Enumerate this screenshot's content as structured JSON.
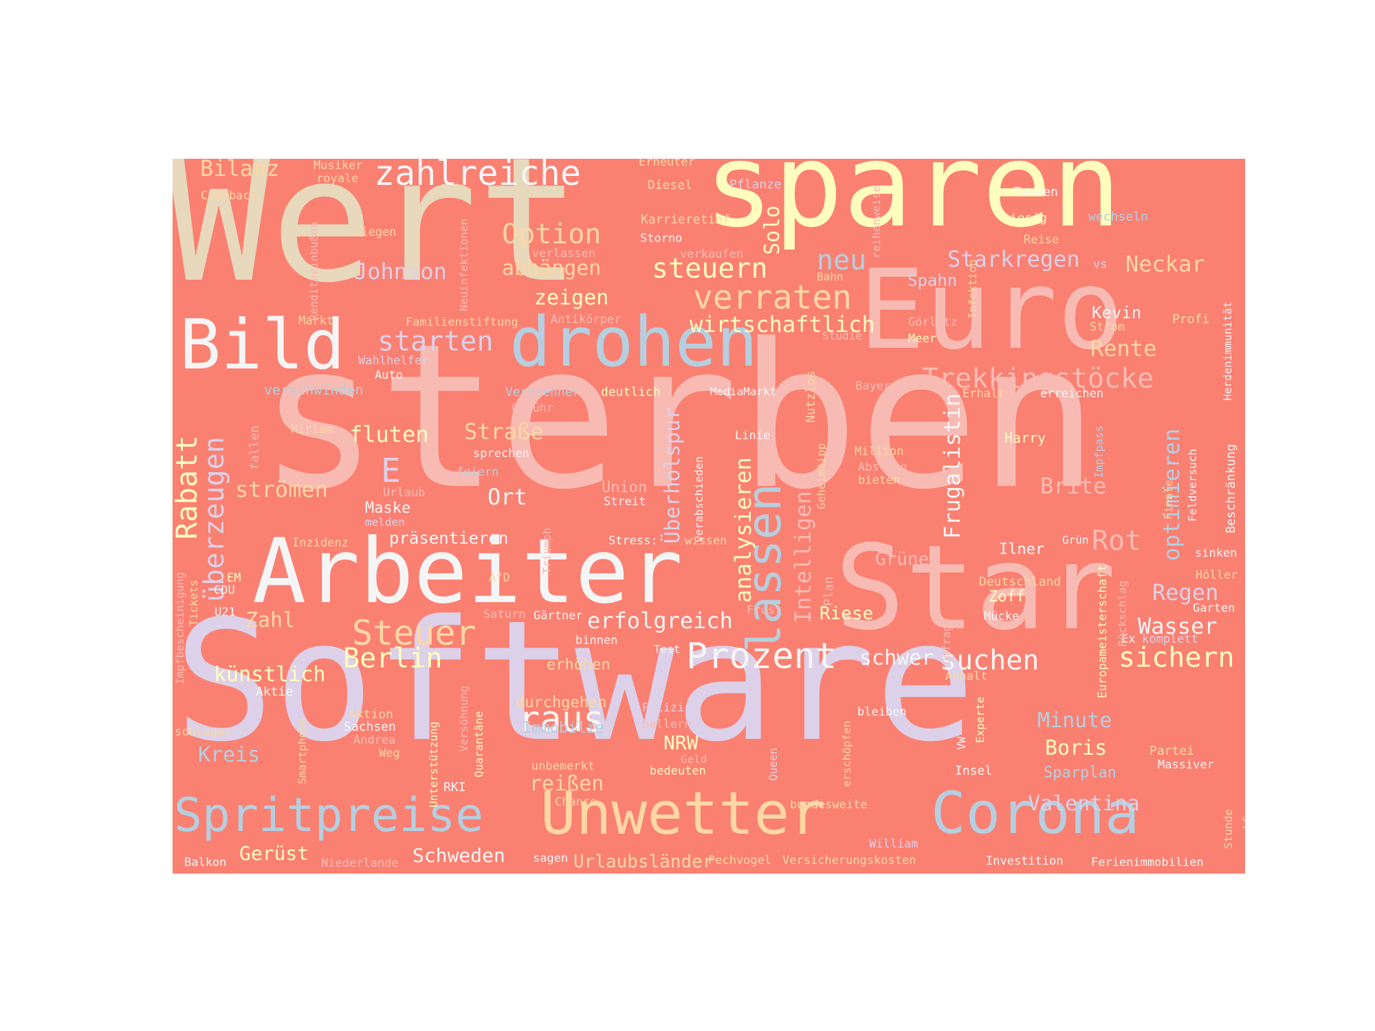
{
  "background_color": "#fa8072",
  "palette": {
    "beige": "#e8d8bc",
    "cream": "#fffdbe",
    "pink": "#f8bbb4",
    "blue": "#b5cfe0",
    "lavender": "#dcd1e8",
    "peach": "#fdd7a4",
    "white": "#f5f5f5",
    "mint": "#cde8c8"
  },
  "words": [
    {
      "text": "Wert",
      "color": "#e8d8bc"
    },
    {
      "text": "sparen",
      "color": "#fffdbe"
    },
    {
      "text": "Euro",
      "color": "#f8bbb4"
    },
    {
      "text": "sterben",
      "color": "#f8bbb4"
    },
    {
      "text": "Star",
      "color": "#f8bbb4"
    },
    {
      "text": "Software",
      "color": "#dcd1e8"
    },
    {
      "text": "Arbeiter",
      "color": "#f5f5f5"
    },
    {
      "text": "drohen",
      "color": "#b5cfe0"
    },
    {
      "text": "Bild",
      "color": "#f5f5f5"
    },
    {
      "text": "Unwetter",
      "color": "#fdd7a4"
    },
    {
      "text": "Corona",
      "color": "#b5cfe0"
    },
    {
      "text": "Spritpreise",
      "color": "#b5cfe0"
    },
    {
      "text": "lassen",
      "color": "#b5cfe0"
    },
    {
      "text": "zahlreiche",
      "color": "#f5f5f5"
    },
    {
      "text": "verraten",
      "color": "#fdd7a4"
    },
    {
      "text": "Option",
      "color": "#fdd7a4"
    },
    {
      "text": "steuern",
      "color": "#fffdbe"
    },
    {
      "text": "Trekkingstöcke",
      "color": "#f8bbb4"
    },
    {
      "text": "starten",
      "color": "#dcd1e8"
    },
    {
      "text": "Rabatt",
      "color": "#fffdbe"
    },
    {
      "text": "überzeugen",
      "color": "#dcd1e8"
    },
    {
      "text": "Prozent",
      "color": "#f5f5f5"
    },
    {
      "text": "Steuer",
      "color": "#fdd7a4"
    },
    {
      "text": "Berlin",
      "color": "#fffdbe"
    },
    {
      "text": "suchen",
      "color": "#f5f5f5"
    },
    {
      "text": "raus",
      "color": "#f5f5f5"
    },
    {
      "text": "Rot",
      "color": "#f8bbb4"
    },
    {
      "text": "sichern",
      "color": "#fffdbe"
    },
    {
      "text": "Johnson",
      "color": "#dcd1e8"
    },
    {
      "text": "Bilanz",
      "color": "#fdd7a4"
    },
    {
      "text": "neu",
      "color": "#b5cfe0"
    },
    {
      "text": "Neckar",
      "color": "#fdd7a4"
    },
    {
      "text": "Starkregen",
      "color": "#dcd1e8"
    },
    {
      "text": "wirtschaftlich",
      "color": "#fffdbe"
    },
    {
      "text": "Rente",
      "color": "#fdd7a4"
    },
    {
      "text": "optimieren",
      "color": "#b5cfe0"
    },
    {
      "text": "Frugalistin",
      "color": "#f5f5f5"
    },
    {
      "text": "analysieren",
      "color": "#fffdbe"
    },
    {
      "text": "Intelligenz",
      "color": "#f8bbb4"
    },
    {
      "text": "erfolgreich",
      "color": "#f5f5f5"
    },
    {
      "text": "Valentina",
      "color": "#dcd1e8"
    },
    {
      "text": "Regen",
      "color": "#dcd1e8"
    },
    {
      "text": "Wasser",
      "color": "#f5f5f5"
    },
    {
      "text": "Brite",
      "color": "#f8bbb4"
    },
    {
      "text": "Überholspur",
      "color": "#dcd1e8"
    },
    {
      "text": "fluten",
      "color": "#fffdbe"
    },
    {
      "text": "Straße",
      "color": "#fdd7a4"
    },
    {
      "text": "strömen",
      "color": "#fdd7a4"
    },
    {
      "text": "abhängen",
      "color": "#fdd7a4"
    },
    {
      "text": "zeigen",
      "color": "#fffdbe"
    },
    {
      "text": "E",
      "color": "#dcd1e8"
    },
    {
      "text": "Ort",
      "color": "#f5f5f5"
    },
    {
      "text": "Solo",
      "color": "#fffdbe"
    },
    {
      "text": "künstlich",
      "color": "#fffdbe"
    },
    {
      "text": "Zahl",
      "color": "#fdd7a4"
    },
    {
      "text": "Kreis",
      "color": "#b5cfe0"
    },
    {
      "text": "Minute",
      "color": "#b5cfe0"
    },
    {
      "text": "Boris",
      "color": "#fffdbe"
    },
    {
      "text": "schwer",
      "color": "#f5f5f5"
    },
    {
      "text": "Grüne",
      "color": "#f8bbb4"
    },
    {
      "text": "Riese",
      "color": "#fffdbe"
    },
    {
      "text": "Gerüst",
      "color": "#fffdbe"
    },
    {
      "text": "Schweden",
      "color": "#f5f5f5"
    },
    {
      "text": "Urlaubsländer",
      "color": "#fdd7a4"
    },
    {
      "text": "reißen",
      "color": "#fdd7a4"
    },
    {
      "text": "NRW",
      "color": "#fffdbe"
    },
    {
      "text": "durchgehen",
      "color": "#fdd7a4"
    },
    {
      "text": "Immobilie",
      "color": "#b5cfe0"
    },
    {
      "text": "Sparplan",
      "color": "#b5cfe0"
    },
    {
      "text": "Kevin",
      "color": "#f5f5f5"
    },
    {
      "text": "Spahn",
      "color": "#dcd1e8"
    },
    {
      "text": "Ilner",
      "color": "#f5f5f5"
    },
    {
      "text": "Maske",
      "color": "#f5f5f5"
    },
    {
      "text": "präsentieren",
      "color": "#f5f5f5"
    },
    {
      "text": "Union",
      "color": "#f8bbb4"
    },
    {
      "text": "Zoff",
      "color": "#fffdbe"
    },
    {
      "text": "Harry",
      "color": "#fffdbe"
    },
    {
      "text": "erhöhen",
      "color": "#fdd7a4"
    },
    {
      "text": "Musiker",
      "color": "#fdd7a4"
    },
    {
      "text": "royale",
      "color": "#fdd7a4"
    },
    {
      "text": "Erneuter",
      "color": "#fdd7a4"
    },
    {
      "text": "Diesel",
      "color": "#fdd7a4"
    },
    {
      "text": "Pflanze",
      "color": "#dcd1e8"
    },
    {
      "text": "Tanken",
      "color": "#f5f5f5"
    },
    {
      "text": "Comeback",
      "color": "#fdd7a4"
    },
    {
      "text": "Karrieretief",
      "color": "#fdd7a4"
    },
    {
      "text": "riesig",
      "color": "#fffdbe"
    },
    {
      "text": "wechseln",
      "color": "#b5cfe0"
    },
    {
      "text": "liegen",
      "color": "#fdd7a4"
    },
    {
      "text": "Storno",
      "color": "#f5f5f5"
    },
    {
      "text": "verkaufen",
      "color": "#f8bbb4"
    },
    {
      "text": "Reise",
      "color": "#fdd7a4"
    },
    {
      "text": "verlassen",
      "color": "#f8bbb4"
    },
    {
      "text": "vs",
      "color": "#dcd1e8"
    },
    {
      "text": "Bahn",
      "color": "#fdd7a4"
    },
    {
      "text": "Familienstiftung",
      "color": "#fdd7a4"
    },
    {
      "text": "Antikörper",
      "color": "#f8bbb4"
    },
    {
      "text": "Markt",
      "color": "#fdd7a4"
    },
    {
      "text": "Görlitz",
      "color": "#f8bbb4"
    },
    {
      "text": "Meer",
      "color": "#fffdbe"
    },
    {
      "text": "Strom",
      "color": "#fdd7a4"
    },
    {
      "text": "Profi",
      "color": "#fdd7a4"
    },
    {
      "text": "Studie",
      "color": "#f8bbb4"
    },
    {
      "text": "Wahlhelfer",
      "color": "#dcd1e8"
    },
    {
      "text": "Auto",
      "color": "#f5f5f5"
    },
    {
      "text": "verschwinden",
      "color": "#b5cfe0"
    },
    {
      "text": "Verbrenner",
      "color": "#b5cfe0"
    },
    {
      "text": "deutlich",
      "color": "#fffdbe"
    },
    {
      "text": "MediaMarkt",
      "color": "#f5f5f5"
    },
    {
      "text": "Bayer",
      "color": "#f8bbb4"
    },
    {
      "text": "Erhalt",
      "color": "#fdd7a4"
    },
    {
      "text": "erreichen",
      "color": "#f5f5f5"
    },
    {
      "text": "Gebühr",
      "color": "#f8bbb4"
    },
    {
      "text": "Miriam",
      "color": "#fdd7a4"
    },
    {
      "text": "Linie",
      "color": "#f5f5f5"
    },
    {
      "text": "Million",
      "color": "#fdd7a4"
    },
    {
      "text": "Abstieg",
      "color": "#f8bbb4"
    },
    {
      "text": "bieten",
      "color": "#fdd7a4"
    },
    {
      "text": "sprechen",
      "color": "#f5f5f5"
    },
    {
      "text": "feiern",
      "color": "#b5cfe0"
    },
    {
      "text": "Urlaub",
      "color": "#f8bbb4"
    },
    {
      "text": "Streit",
      "color": "#f5f5f5"
    },
    {
      "text": "melden",
      "color": "#dcd1e8"
    },
    {
      "text": "Inzidenz",
      "color": "#fdd7a4"
    },
    {
      "text": "Stress:",
      "color": "#f5f5f5"
    },
    {
      "text": "wissen",
      "color": "#fdd7a4"
    },
    {
      "text": "Grün",
      "color": "#f5f5f5"
    },
    {
      "text": "sinken",
      "color": "#f5f5f5"
    },
    {
      "text": "Deutschland",
      "color": "#fdd7a4"
    },
    {
      "text": "Höller",
      "color": "#fdd7a4"
    },
    {
      "text": "Garten",
      "color": "#f5f5f5"
    },
    {
      "text": "EM",
      "color": "#fffdbe"
    },
    {
      "text": "CDU",
      "color": "#f5f5f5"
    },
    {
      "text": "U21",
      "color": "#f5f5f5"
    },
    {
      "text": "AfD",
      "color": "#fdd7a4"
    },
    {
      "text": "Saturn",
      "color": "#f8bbb4"
    },
    {
      "text": "Gärtner",
      "color": "#f5f5f5"
    },
    {
      "text": "Frust",
      "color": "#f8bbb4"
    },
    {
      "text": "Mücke",
      "color": "#f5f5f5"
    },
    {
      "text": "binnen",
      "color": "#f5f5f5"
    },
    {
      "text": "Test",
      "color": "#f5f5f5"
    },
    {
      "text": "Ex",
      "color": "#f5f5f5"
    },
    {
      "text": "komplett",
      "color": "#dcd1e8"
    },
    {
      "text": "Anhalt",
      "color": "#fdd7a4"
    },
    {
      "text": "Aktie",
      "color": "#f5f5f5"
    },
    {
      "text": "Aktion",
      "color": "#fdd7a4"
    },
    {
      "text": "Sachsen",
      "color": "#f5f5f5"
    },
    {
      "text": "Andrea",
      "color": "#f8bbb4"
    },
    {
      "text": "Weg",
      "color": "#fdd7a4"
    },
    {
      "text": "schlagen",
      "color": "#fdd7a4"
    },
    {
      "text": "Polizist",
      "color": "#dcd1e8"
    },
    {
      "text": "ballern",
      "color": "#f8bbb4"
    },
    {
      "text": "bleiben",
      "color": "#f5f5f5"
    },
    {
      "text": "Geld",
      "color": "#f8bbb4"
    },
    {
      "text": "unbemerkt",
      "color": "#fdd7a4"
    },
    {
      "text": "bedeuten",
      "color": "#fffdbe"
    },
    {
      "text": "Chance",
      "color": "#fdd7a4"
    },
    {
      "text": "Insel",
      "color": "#f5f5f5"
    },
    {
      "text": "Partei",
      "color": "#fdd7a4"
    },
    {
      "text": "Massiver",
      "color": "#f5f5f5"
    },
    {
      "text": "bundesweite",
      "color": "#fdd7a4"
    },
    {
      "text": "RKI",
      "color": "#f5f5f5"
    },
    {
      "text": "William",
      "color": "#dcd1e8"
    },
    {
      "text": "Balkon",
      "color": "#f5f5f5"
    },
    {
      "text": "Niederlande",
      "color": "#f8bbb4"
    },
    {
      "text": "sagen",
      "color": "#f5f5f5"
    },
    {
      "text": "Pechvogel",
      "color": "#fdd7a4"
    },
    {
      "text": "Versicherungskosten",
      "color": "#fdd7a4"
    },
    {
      "text": "Investition",
      "color": "#f5f5f5"
    },
    {
      "text": "Ferienimmobilien",
      "color": "#f5f5f5"
    },
    {
      "text": "Renditeeinbußen",
      "color": "#f8bbb4"
    },
    {
      "text": "Neuinfektionen",
      "color": "#f8bbb4"
    },
    {
      "text": "reihenweise",
      "color": "#f8bbb4"
    },
    {
      "text": "Infektion",
      "color": "#fdd7a4"
    },
    {
      "text": "Herdenimmunität",
      "color": "#f5f5f5"
    },
    {
      "text": "Nutzlos",
      "color": "#fdd7a4"
    },
    {
      "text": "Geheimtipp",
      "color": "#fdd7a4"
    },
    {
      "text": "verabschieden",
      "color": "#f5f5f5"
    },
    {
      "text": "fallen",
      "color": "#f8bbb4"
    },
    {
      "text": "Triumph",
      "color": "#f8bbb4"
    },
    {
      "text": "Plan",
      "color": "#f8bbb4"
    },
    {
      "text": "Impfpass",
      "color": "#b5cfe0"
    },
    {
      "text": "Feldversuch",
      "color": "#f5f5f5"
    },
    {
      "text": "Finale",
      "color": "#fdd7a4"
    },
    {
      "text": "Beschränkung",
      "color": "#f5f5f5"
    },
    {
      "text": "Europameisterschaft",
      "color": "#fffdbe"
    },
    {
      "text": "Rückschlag",
      "color": "#f8bbb4"
    },
    {
      "text": "Umfrage",
      "color": "#f8bbb4"
    },
    {
      "text": "Impfbescheinigung",
      "color": "#f8bbb4"
    },
    {
      "text": "Tickets",
      "color": "#fdd7a4"
    },
    {
      "text": "Smartphone",
      "color": "#fdd7a4"
    },
    {
      "text": "Unterstützung",
      "color": "#fffdbe"
    },
    {
      "text": "Versöhnung",
      "color": "#f8bbb4"
    },
    {
      "text": "Quarantäne",
      "color": "#fffdbe"
    },
    {
      "text": "erschöpfen",
      "color": "#fdd7a4"
    },
    {
      "text": "Queen",
      "color": "#dcd1e8"
    },
    {
      "text": "Experte",
      "color": "#fffdbe"
    },
    {
      "text": "VW",
      "color": "#f5f5f5"
    },
    {
      "text": "Stunde",
      "color": "#fdd7a4"
    },
    {
      "text": "LG",
      "color": "#fdd7a4"
    }
  ]
}
